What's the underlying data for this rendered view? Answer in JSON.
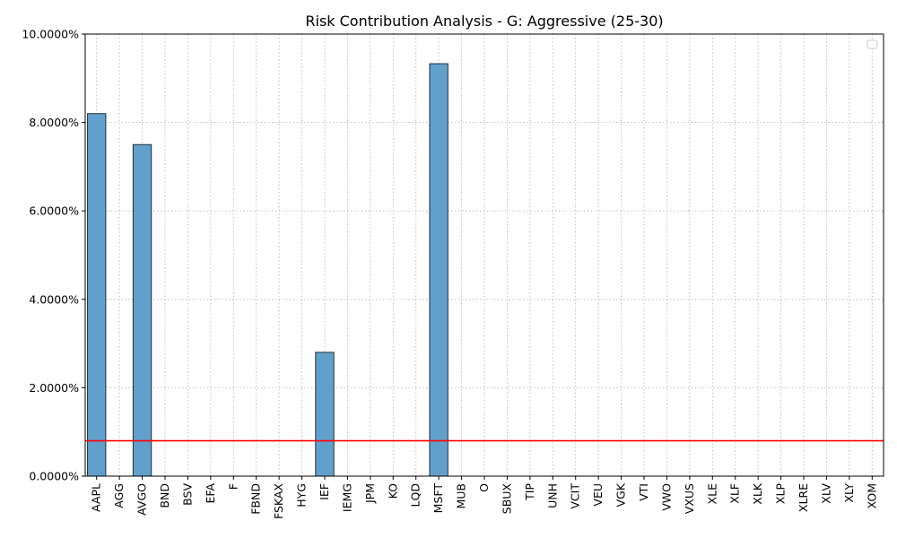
{
  "chart_data": {
    "type": "bar",
    "title": "Risk Contribution Analysis - G: Aggressive (25-30)",
    "xlabel": "",
    "ylabel": "",
    "categories": [
      "AAPL",
      "AGG",
      "AVGO",
      "BND",
      "BSV",
      "EFA",
      "F",
      "FBND",
      "FSKAX",
      "HYG",
      "IEF",
      "IEMG",
      "JPM",
      "KO",
      "LQD",
      "MSFT",
      "MUB",
      "O",
      "SBUX",
      "TIP",
      "UNH",
      "VCIT",
      "VEU",
      "VGK",
      "VTI",
      "VWO",
      "VXUS",
      "XLE",
      "XLF",
      "XLK",
      "XLP",
      "XLRE",
      "XLV",
      "XLY",
      "XOM"
    ],
    "values": [
      8.2,
      0,
      7.5,
      0,
      0,
      0,
      0,
      0,
      0,
      0,
      2.8,
      0,
      0,
      0,
      0,
      9.33,
      0,
      0,
      0,
      0,
      0,
      0,
      0,
      0,
      0,
      0,
      0,
      0,
      0,
      0,
      0,
      0,
      0,
      0,
      0
    ],
    "value_unit": "%",
    "ylim": [
      0,
      10
    ],
    "yticks": [
      0,
      2,
      4,
      6,
      8,
      10
    ],
    "ytick_labels": [
      "0.0000%",
      "2.0000%",
      "4.0000%",
      "6.0000%",
      "8.0000%",
      "10.0000%"
    ],
    "reference_line": {
      "value": 0.8,
      "color": "#ff0000"
    },
    "bar_color": "#5a9bc9",
    "grid": true,
    "legend": {
      "placement": "top-right",
      "entries": []
    }
  }
}
